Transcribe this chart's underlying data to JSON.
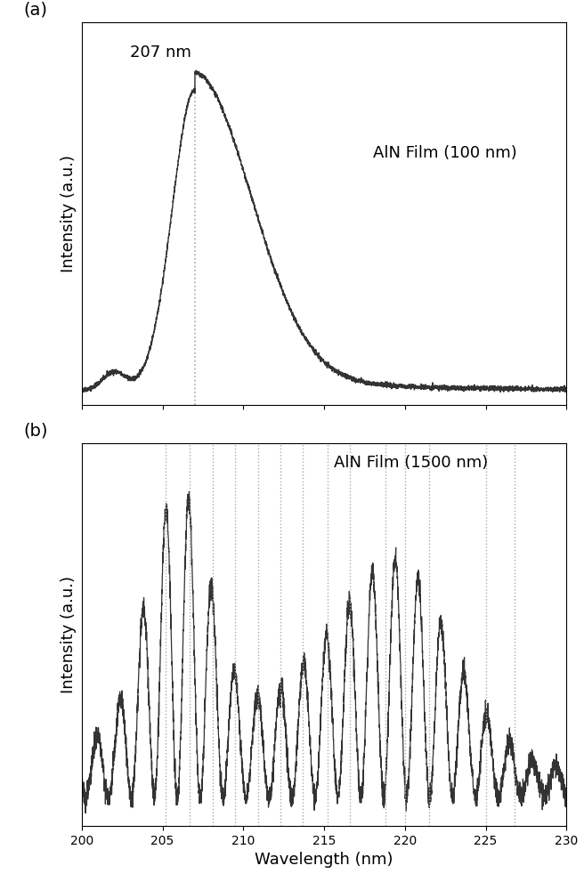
{
  "xlim": [
    200,
    230
  ],
  "xlabel": "Wavelength (nm)",
  "ylabel": "Intensity (a.u.)",
  "panel_a_label": "(a)",
  "panel_b_label": "(b)",
  "panel_a_annotation": "207 nm",
  "panel_a_peak": 207,
  "panel_a_text": "AlN Film (100 nm)",
  "panel_b_text": "AlN Film (1500 nm)",
  "panel_b_dashed_lines": [
    205.2,
    206.7,
    208.1,
    209.5,
    210.9,
    212.3,
    213.7,
    215.2,
    216.6,
    218.8,
    220.0,
    221.5,
    225.0,
    226.8
  ],
  "line_color": "#333333",
  "dashed_color": "#aaaaaa",
  "background_color": "#ffffff",
  "xticks": [
    200,
    205,
    210,
    215,
    220,
    225,
    230
  ],
  "font_size_label": 13,
  "font_size_annotation": 13,
  "font_size_panel_label": 14
}
